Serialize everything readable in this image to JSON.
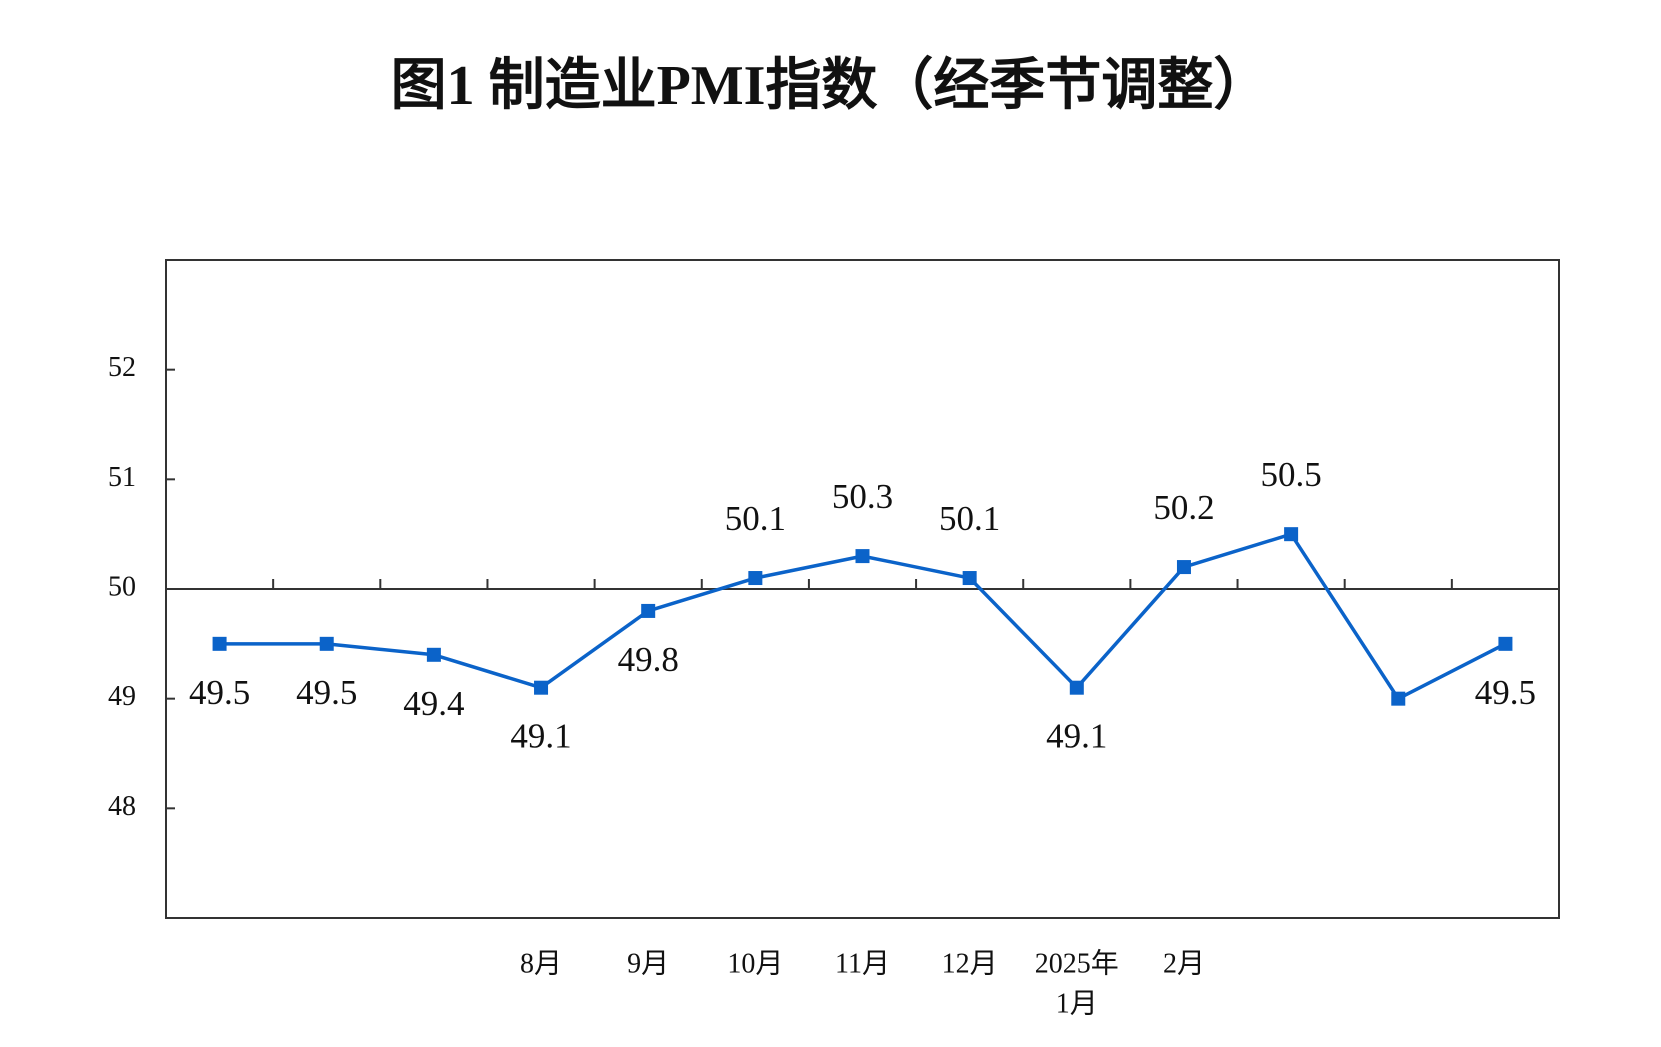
{
  "chart_data": {
    "type": "line",
    "title": "图1  制造业PMI指数（经季节调整）",
    "categories": [
      null,
      null,
      null,
      "8月",
      "9月",
      "10月",
      "11月",
      "12月",
      [
        "2025年",
        "1月"
      ],
      "2月",
      null,
      null,
      null
    ],
    "series": [
      {
        "name": "制造业PMI",
        "color": "#0b63c9",
        "values": [
          49.5,
          49.5,
          49.4,
          49.1,
          49.8,
          50.1,
          50.3,
          50.1,
          49.1,
          50.2,
          50.5,
          49.0,
          49.5
        ],
        "value_labels": [
          "49.5",
          "49.5",
          "49.4",
          "49.1",
          "49.8",
          "50.1",
          "50.3",
          "50.1",
          "49.1",
          "50.2",
          "50.5",
          null,
          "49.5"
        ]
      }
    ],
    "ylim": [
      47,
      53
    ],
    "yticks": [
      48,
      49,
      50,
      51,
      52
    ],
    "reference_line": 50
  }
}
